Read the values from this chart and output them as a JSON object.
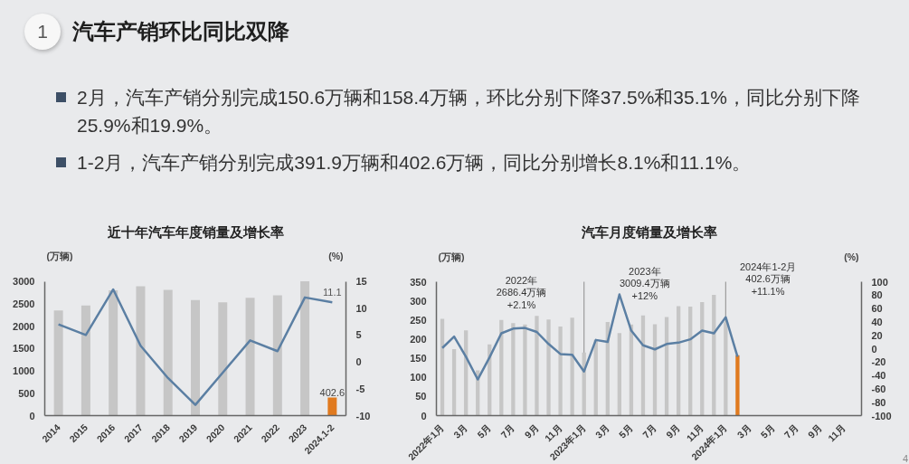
{
  "chart_data": [
    {
      "type": "other",
      "title": "汽车产销环比同比双降",
      "annotations": [
        "1",
        "2月，汽车产销分别完成150.6万辆和158.4万辆，环比分别下降37.5%和35.1%，同比分别下降25.9%和19.9%。",
        "1-2月，汽车产销分别完成391.9万辆和402.6万辆，同比分别增长8.1%和11.1%。",
        "4"
      ]
    },
    {
      "type": "bar",
      "title": "近十年汽车年度销量及增长率",
      "ylabel": "(万辆)",
      "y2label": "(%)",
      "categories": [
        "2014",
        "2015",
        "2016",
        "2017",
        "2018",
        "2019",
        "2020",
        "2021",
        "2022",
        "2023",
        "2024.1-2"
      ],
      "series": [
        {
          "type": "bar",
          "values": [
            2350,
            2460,
            2800,
            2890,
            2810,
            2580,
            2530,
            2630,
            2690,
            3000,
            402.6
          ],
          "colors": [
            "#c6c6c6",
            "#c6c6c6",
            "#c6c6c6",
            "#c6c6c6",
            "#c6c6c6",
            "#c6c6c6",
            "#c6c6c6",
            "#c6c6c6",
            "#c6c6c6",
            "#c6c6c6",
            "#e07a1f"
          ],
          "value_labels": [
            null,
            null,
            null,
            null,
            null,
            null,
            null,
            null,
            null,
            null,
            "402.6"
          ]
        },
        {
          "type": "line",
          "axis": "y2",
          "color": "#5b7fa3",
          "values": [
            7,
            5,
            13.5,
            3,
            -3,
            -8,
            -2,
            4,
            2,
            12,
            11.1
          ],
          "value_labels": [
            null,
            null,
            null,
            null,
            null,
            null,
            null,
            null,
            null,
            null,
            "11.1"
          ]
        }
      ],
      "ylim": [
        0,
        3000
      ],
      "yticks": [
        0,
        500,
        1000,
        1500,
        2000,
        2500,
        3000
      ],
      "y2lim": [
        -10,
        15
      ],
      "y2ticks": [
        -10,
        -5,
        0,
        5,
        10,
        15
      ]
    },
    {
      "type": "bar",
      "title": "汽车月度销量及增长率",
      "ylabel": "(万辆)",
      "y2label": "(%)",
      "categories": [
        "2022年1月",
        null,
        "3月",
        null,
        "5月",
        null,
        "7月",
        null,
        "9月",
        null,
        "11月",
        null,
        "2023年1月",
        null,
        "3月",
        null,
        "5月",
        null,
        "7月",
        null,
        "9月",
        null,
        "11月",
        null,
        "2024年1月",
        null,
        "3月",
        null,
        "5月",
        null,
        "7月",
        null,
        "9月",
        null,
        "11月",
        null
      ],
      "series": [
        {
          "type": "bar",
          "values": [
            253,
            174,
            223,
            118,
            186,
            250,
            242,
            238,
            261,
            251,
            233,
            256,
            165,
            198,
            245,
            216,
            238,
            262,
            239,
            258,
            286,
            285,
            297,
            316,
            244,
            158,
            null,
            null,
            null,
            null,
            null,
            null,
            null,
            null,
            null,
            null
          ],
          "colors": [
            "#c6c6c6",
            "#c6c6c6",
            "#c6c6c6",
            "#c6c6c6",
            "#c6c6c6",
            "#c6c6c6",
            "#c6c6c6",
            "#c6c6c6",
            "#c6c6c6",
            "#c6c6c6",
            "#c6c6c6",
            "#c6c6c6",
            "#c6c6c6",
            "#c6c6c6",
            "#c6c6c6",
            "#c6c6c6",
            "#c6c6c6",
            "#c6c6c6",
            "#c6c6c6",
            "#c6c6c6",
            "#c6c6c6",
            "#c6c6c6",
            "#c6c6c6",
            "#c6c6c6",
            "#c6c6c6",
            "#e07a1f",
            null,
            null,
            null,
            null,
            null,
            null,
            null,
            null,
            null,
            null
          ]
        },
        {
          "type": "line",
          "axis": "y2",
          "color": "#5b7fa3",
          "values": [
            1,
            18,
            -12,
            -46,
            -13,
            23,
            30,
            31,
            25,
            7,
            -8,
            -9,
            -34,
            13,
            10,
            81,
            27,
            5,
            -1,
            7,
            9,
            14,
            27,
            23,
            47,
            -12,
            null,
            null,
            null,
            null,
            null,
            null,
            null,
            null,
            null,
            null
          ]
        }
      ],
      "ylim": [
        0,
        350
      ],
      "yticks": [
        0,
        50,
        100,
        150,
        200,
        250,
        300,
        350
      ],
      "y2lim": [
        -100,
        100
      ],
      "y2ticks": [
        -100,
        -80,
        -60,
        -40,
        -20,
        0,
        20,
        40,
        60,
        80,
        100
      ],
      "ref_lines": [
        {
          "axis": "x",
          "value": "2023年1月",
          "color": "#9c9c9c"
        },
        {
          "axis": "x",
          "value": "2024年1月",
          "color": "#9c9c9c"
        }
      ],
      "annotations": [
        "2022年\n2686.4万辆\n+2.1%",
        "2023年\n3009.4万辆\n+12%",
        "2024年1-2月\n402.6万辆\n+11.1%"
      ]
    }
  ]
}
